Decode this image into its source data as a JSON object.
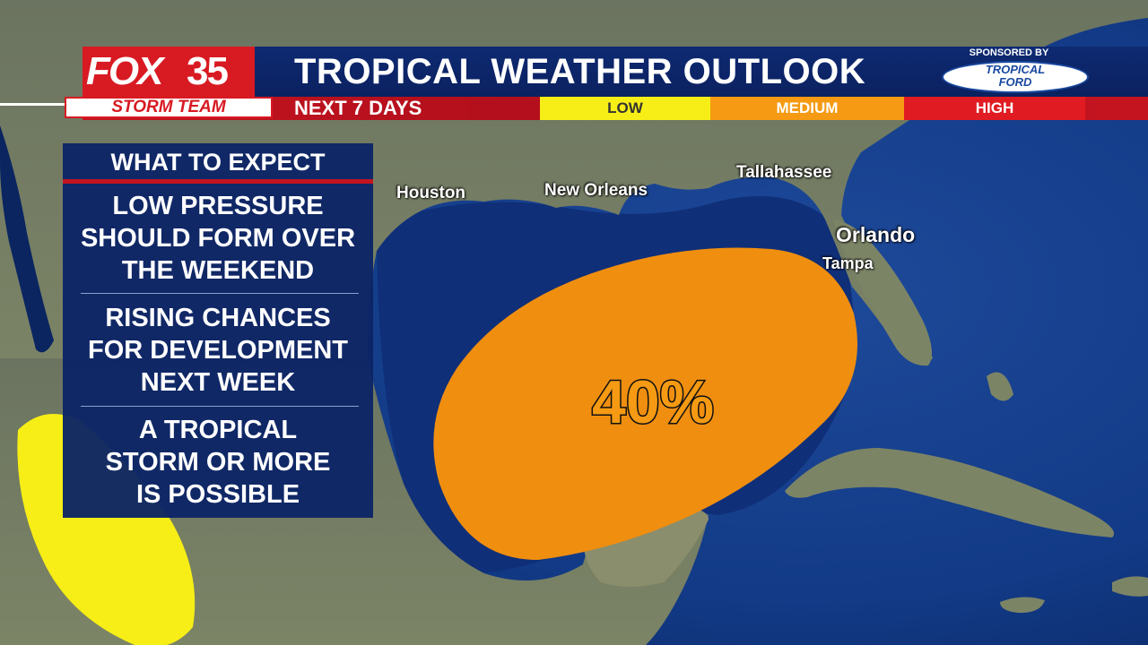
{
  "brand": {
    "station": "FOX",
    "channel_number": "35",
    "team": "STORM TEAM"
  },
  "header": {
    "title": "TROPICAL WEATHER OUTLOOK",
    "subtitle": "NEXT 7 DAYS"
  },
  "risk_scale": [
    {
      "label": "LOW",
      "color": "#f6ee16"
    },
    {
      "label": "MEDIUM",
      "color": "#f59a12"
    },
    {
      "label": "HIGH",
      "color": "#e01c22"
    }
  ],
  "sponsor": {
    "label": "SPONSORED BY",
    "name_line1": "TROPICAL",
    "name_line2": "FORD"
  },
  "panel": {
    "heading": "WHAT TO EXPECT",
    "items": [
      [
        "LOW PRESSURE",
        "SHOULD FORM OVER",
        "THE WEEKEND"
      ],
      [
        "RISING CHANCES",
        "FOR DEVELOPMENT",
        "NEXT WEEK"
      ],
      [
        "A TROPICAL",
        "STORM OR MORE",
        "IS POSSIBLE"
      ]
    ]
  },
  "map": {
    "cities": [
      "Houston",
      "New Orleans",
      "Tallahassee",
      "Orlando",
      "Tampa"
    ],
    "development_area": {
      "probability": "40%",
      "risk_level": "MEDIUM",
      "color": "#f59a12"
    },
    "secondary_area": {
      "risk_level": "LOW",
      "color": "#f6ee16"
    },
    "colors": {
      "ocean": "#0a2560",
      "land": "#6f7a5e"
    }
  }
}
